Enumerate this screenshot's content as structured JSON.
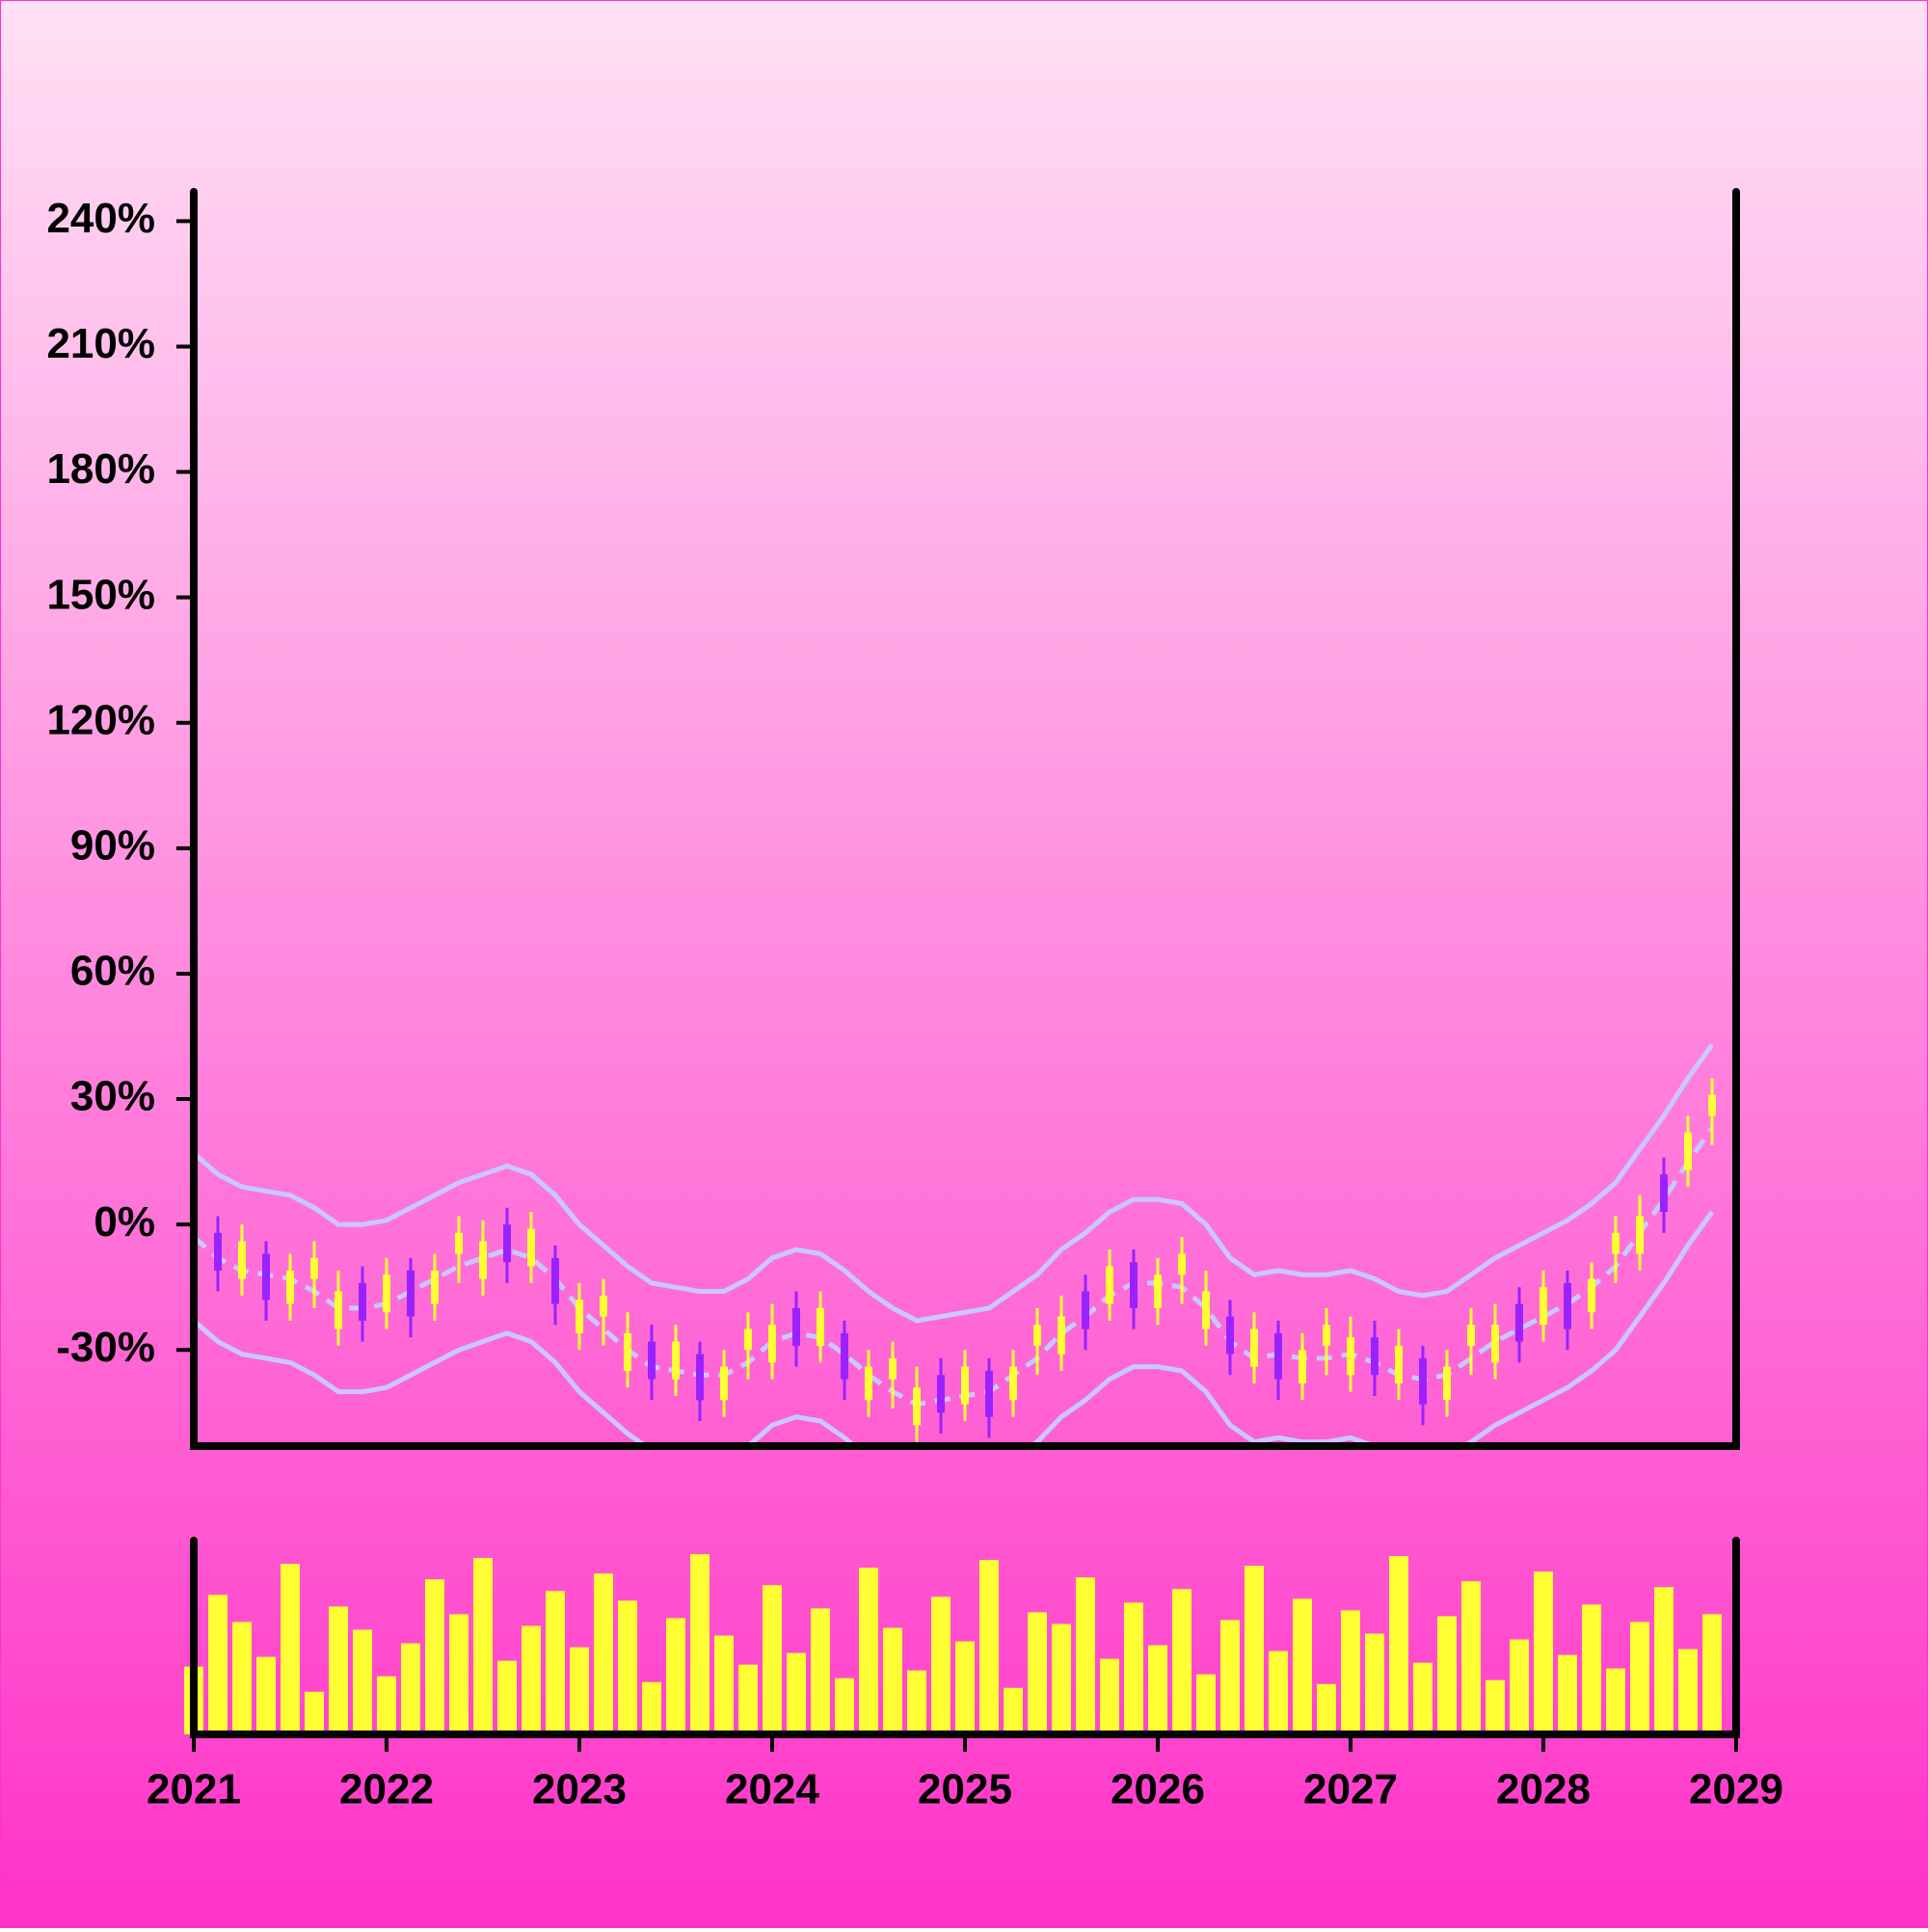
{
  "chart_data": {
    "type": "ohlc",
    "x": [
      2021,
      2021.125,
      2021.25,
      2021.375,
      2021.5,
      2021.625,
      2021.75,
      2021.875,
      2022,
      2022.125,
      2022.25,
      2022.375,
      2022.5,
      2022.625,
      2022.75,
      2022.875,
      2023,
      2023.125,
      2023.25,
      2023.375,
      2023.5,
      2023.625,
      2023.75,
      2023.875,
      2024,
      2024.125,
      2024.25,
      2024.375,
      2024.5,
      2024.625,
      2024.75,
      2024.875,
      2025,
      2025.125,
      2025.25,
      2025.375,
      2025.5,
      2025.625,
      2025.75,
      2025.875,
      2026,
      2026.125,
      2026.25,
      2026.375,
      2026.5,
      2026.625,
      2026.75,
      2026.875,
      2027,
      2027.125,
      2027.25,
      2027.375,
      2027.5,
      2027.625,
      2027.75,
      2027.875,
      2028,
      2028.125,
      2028.25,
      2028.375,
      2028.5,
      2028.625,
      2028.75,
      2028.875
    ],
    "open": [
      -8,
      -2,
      -13,
      -7,
      -19,
      -13,
      -25,
      -14,
      -21,
      -11,
      -19,
      -7,
      -13,
      0,
      -10,
      -8,
      -26,
      -22,
      -35,
      -28,
      -37,
      -31,
      -42,
      -30,
      -33,
      -20,
      -29,
      -26,
      -42,
      -37,
      -48,
      -36,
      -43,
      -35,
      -42,
      -29,
      -31,
      -16,
      -19,
      -9,
      -20,
      -12,
      -25,
      -22,
      -34,
      -26,
      -38,
      -29,
      -36,
      -27,
      -38,
      -32,
      -42,
      -29,
      -33,
      -19,
      -24,
      -14,
      -21,
      -7,
      -7,
      12,
      13,
      26
    ],
    "high": [
      6,
      2,
      0,
      -4,
      -7,
      -4,
      -11,
      -10,
      -8,
      -8,
      -7,
      2,
      1,
      4,
      3,
      -5,
      -14,
      -13,
      -21,
      -24,
      -24,
      -28,
      -30,
      -21,
      -19,
      -16,
      -16,
      -23,
      -30,
      -28,
      -34,
      -32,
      -30,
      -32,
      -30,
      -20,
      -17,
      -12,
      -6,
      -6,
      -8,
      -3,
      -11,
      -18,
      -21,
      -23,
      -26,
      -20,
      -22,
      -23,
      -25,
      -29,
      -30,
      -20,
      -19,
      -15,
      -11,
      -11,
      -9,
      2,
      7,
      16,
      26,
      35
    ],
    "low": [
      -12,
      -16,
      -17,
      -23,
      -23,
      -20,
      -29,
      -28,
      -25,
      -27,
      -23,
      -14,
      -17,
      -14,
      -14,
      -24,
      -30,
      -29,
      -39,
      -42,
      -41,
      -47,
      -46,
      -37,
      -37,
      -34,
      -33,
      -42,
      -46,
      -44,
      -52,
      -50,
      -47,
      -51,
      -46,
      -36,
      -35,
      -30,
      -23,
      -25,
      -24,
      -19,
      -29,
      -36,
      -38,
      -42,
      -42,
      -36,
      -40,
      -41,
      -42,
      -48,
      -46,
      -36,
      -37,
      -33,
      -28,
      -30,
      -25,
      -14,
      -11,
      -2,
      9,
      19
    ],
    "close": [
      1,
      -11,
      -4,
      -18,
      -11,
      -8,
      -16,
      -23,
      -12,
      -22,
      -11,
      -2,
      -4,
      -9,
      -1,
      -19,
      -18,
      -17,
      -26,
      -37,
      -28,
      -42,
      -34,
      -25,
      -24,
      -29,
      -20,
      -37,
      -34,
      -32,
      -39,
      -45,
      -34,
      -46,
      -34,
      -24,
      -22,
      -25,
      -10,
      -20,
      -12,
      -7,
      -16,
      -31,
      -25,
      -37,
      -30,
      -24,
      -27,
      -36,
      -29,
      -43,
      -34,
      -24,
      -24,
      -28,
      -15,
      -25,
      -13,
      -2,
      2,
      3,
      22,
      31
    ],
    "volume": [
      35,
      72,
      58,
      40,
      88,
      22,
      66,
      54,
      30,
      47,
      80,
      62,
      91,
      38,
      56,
      74,
      45,
      83,
      69,
      27,
      60,
      93,
      51,
      36,
      77,
      42,
      65,
      29,
      86,
      55,
      33,
      71,
      48,
      90,
      24,
      63,
      57,
      81,
      39,
      68,
      46,
      75,
      31,
      59,
      87,
      43,
      70,
      26,
      64,
      52,
      92,
      37,
      61,
      79,
      28,
      49,
      84,
      41,
      67,
      34,
      58,
      76,
      44,
      62
    ],
    "up_color": "#ffff33",
    "down_color": "#9922ff",
    "band_color": "#c8c8ff",
    "volume_color": "#ffff33",
    "bands": {
      "upper": [
        17,
        12,
        9,
        8,
        7,
        4,
        0,
        0,
        1,
        4,
        7,
        10,
        12,
        14,
        12,
        7,
        0,
        -5,
        -10,
        -14,
        -15,
        -16,
        -16,
        -13,
        -8,
        -6,
        -7,
        -11,
        -16,
        -20,
        -23,
        -22,
        -21,
        -20,
        -16,
        -12,
        -6,
        -2,
        3,
        6,
        6,
        5,
        0,
        -8,
        -12,
        -11,
        -12,
        -12,
        -11,
        -13,
        -16,
        -17,
        -16,
        -12,
        -8,
        -5,
        -2,
        1,
        5,
        10,
        18,
        26,
        35,
        43
      ],
      "middle": [
        -3,
        -8,
        -11,
        -12,
        -13,
        -16,
        -20,
        -20,
        -19,
        -16,
        -13,
        -10,
        -8,
        -6,
        -8,
        -13,
        -20,
        -25,
        -30,
        -34,
        -35,
        -36,
        -36,
        -33,
        -28,
        -26,
        -27,
        -31,
        -36,
        -40,
        -43,
        -42,
        -41,
        -40,
        -36,
        -32,
        -26,
        -22,
        -17,
        -14,
        -14,
        -15,
        -20,
        -28,
        -32,
        -31,
        -32,
        -32,
        -31,
        -33,
        -36,
        -37,
        -36,
        -32,
        -28,
        -25,
        -22,
        -19,
        -15,
        -10,
        -2,
        6,
        15,
        23
      ],
      "lower": [
        -23,
        -28,
        -31,
        -32,
        -33,
        -36,
        -40,
        -40,
        -39,
        -36,
        -33,
        -30,
        -28,
        -26,
        -28,
        -33,
        -40,
        -45,
        -50,
        -54,
        -55,
        -56,
        -56,
        -53,
        -48,
        -46,
        -47,
        -51,
        -56,
        -60,
        -63,
        -62,
        -61,
        -60,
        -56,
        -52,
        -46,
        -42,
        -37,
        -34,
        -34,
        -35,
        -40,
        -48,
        -52,
        -51,
        -52,
        -52,
        -51,
        -53,
        -56,
        -57,
        -56,
        -52,
        -48,
        -45,
        -42,
        -39,
        -35,
        -30,
        -22,
        -14,
        -5,
        3
      ]
    },
    "xlim": [
      2021,
      2029
    ],
    "xticks": [
      2021,
      2022,
      2023,
      2024,
      2025,
      2026,
      2027,
      2028,
      2029
    ],
    "ylim": [
      -53,
      247
    ],
    "yticks": [
      {
        "value": -30,
        "label": "-30%"
      },
      {
        "value": 0,
        "label": "0%"
      },
      {
        "value": 30,
        "label": "30%"
      },
      {
        "value": 60,
        "label": "60%"
      },
      {
        "value": 90,
        "label": "90%"
      },
      {
        "value": 120,
        "label": "120%"
      },
      {
        "value": 150,
        "label": "150%"
      },
      {
        "value": 180,
        "label": "180%"
      },
      {
        "value": 210,
        "label": "210%"
      },
      {
        "value": 240,
        "label": "240%"
      }
    ],
    "vlim": [
      0,
      100
    ]
  }
}
